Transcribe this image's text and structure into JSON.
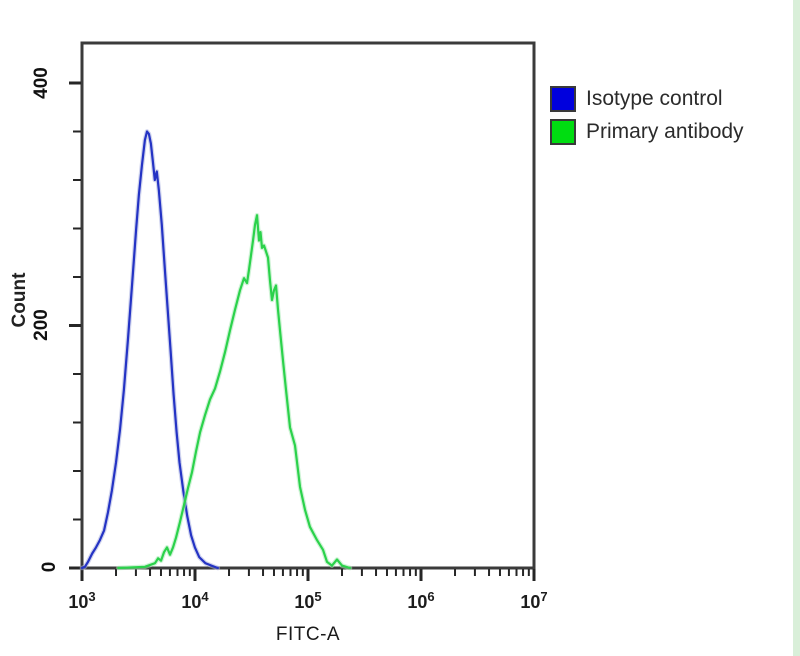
{
  "figure": {
    "background": "#ffffff",
    "right_edge_tint": "#d9efd9"
  },
  "chart_data": {
    "type": "line",
    "subtype": "flow-cytometry-overlay-histogram",
    "title": "",
    "xlabel": "FITC-A",
    "ylabel": "Count",
    "x_scale": "log",
    "x_range": [
      1000,
      10000000
    ],
    "x_ticks": [
      {
        "base": "10",
        "exp": "3"
      },
      {
        "base": "10",
        "exp": "4"
      },
      {
        "base": "10",
        "exp": "5"
      },
      {
        "base": "10",
        "exp": "6"
      },
      {
        "base": "10",
        "exp": "7"
      }
    ],
    "y_range": [
      0,
      433
    ],
    "y_major_ticks": [
      400,
      200,
      0
    ],
    "y_minor_step": 40,
    "grid": false,
    "frame_color": "#3b3b3b",
    "tick_color": "#262626",
    "legend_position": "outside-top-right",
    "series": [
      {
        "name": "Isotype control",
        "color": "#2433c4",
        "halo": "#aab0e0",
        "swatch": "#0000dd",
        "peak_value": 3760,
        "peak_count": 360,
        "points": [
          [
            1000,
            0
          ],
          [
            1060,
            1
          ],
          [
            1130,
            5
          ],
          [
            1230,
            12
          ],
          [
            1330,
            17
          ],
          [
            1440,
            23
          ],
          [
            1570,
            31
          ],
          [
            1700,
            46
          ],
          [
            1840,
            64
          ],
          [
            2000,
            87
          ],
          [
            2170,
            114
          ],
          [
            2350,
            147
          ],
          [
            2550,
            188
          ],
          [
            2770,
            233
          ],
          [
            3010,
            279
          ],
          [
            3190,
            308
          ],
          [
            3390,
            332
          ],
          [
            3600,
            353
          ],
          [
            3760,
            360
          ],
          [
            3910,
            358
          ],
          [
            4070,
            350
          ],
          [
            4240,
            335
          ],
          [
            4410,
            320
          ],
          [
            4590,
            327
          ],
          [
            4780,
            312
          ],
          [
            5080,
            283
          ],
          [
            5400,
            247
          ],
          [
            5730,
            213
          ],
          [
            6090,
            178
          ],
          [
            6460,
            143
          ],
          [
            6870,
            112
          ],
          [
            7290,
            87
          ],
          [
            7890,
            63
          ],
          [
            8530,
            43
          ],
          [
            9230,
            27
          ],
          [
            9980,
            17
          ],
          [
            10900,
            9
          ],
          [
            12350,
            4
          ],
          [
            14000,
            2
          ],
          [
            15900,
            0
          ]
        ]
      },
      {
        "name": "Primary antibody",
        "color": "#2bd24b",
        "halo": "#a8e9b4",
        "swatch": "#00dd11",
        "peak_value": 35400,
        "peak_count": 291,
        "points": [
          [
            2100,
            0
          ],
          [
            3600,
            1
          ],
          [
            4430,
            4
          ],
          [
            4710,
            8
          ],
          [
            5000,
            6
          ],
          [
            5320,
            13
          ],
          [
            5650,
            17
          ],
          [
            6010,
            11
          ],
          [
            6390,
            17
          ],
          [
            6790,
            25
          ],
          [
            7370,
            38
          ],
          [
            8000,
            52
          ],
          [
            8670,
            66
          ],
          [
            9400,
            79
          ],
          [
            10200,
            96
          ],
          [
            11100,
            112
          ],
          [
            12250,
            126
          ],
          [
            13570,
            139
          ],
          [
            15030,
            148
          ],
          [
            16640,
            162
          ],
          [
            18420,
            178
          ],
          [
            20400,
            196
          ],
          [
            22590,
            213
          ],
          [
            25010,
            229
          ],
          [
            27140,
            239
          ],
          [
            28850,
            235
          ],
          [
            30050,
            246
          ],
          [
            31300,
            258
          ],
          [
            32600,
            270
          ],
          [
            33950,
            283
          ],
          [
            35400,
            291
          ],
          [
            36850,
            270
          ],
          [
            38000,
            277
          ],
          [
            39150,
            264
          ],
          [
            40800,
            266
          ],
          [
            42500,
            261
          ],
          [
            44270,
            256
          ],
          [
            46100,
            237
          ],
          [
            48000,
            221
          ],
          [
            50000,
            229
          ],
          [
            52100,
            233
          ],
          [
            54300,
            213
          ],
          [
            56500,
            196
          ],
          [
            60100,
            171
          ],
          [
            63900,
            147
          ],
          [
            69300,
            116
          ],
          [
            76700,
            101
          ],
          [
            84900,
            67
          ],
          [
            94000,
            48
          ],
          [
            104000,
            34
          ],
          [
            120200,
            23
          ],
          [
            135800,
            15
          ],
          [
            147300,
            5
          ],
          [
            163000,
            2
          ],
          [
            180600,
            7
          ],
          [
            200000,
            2
          ],
          [
            235500,
            0
          ]
        ]
      }
    ]
  }
}
